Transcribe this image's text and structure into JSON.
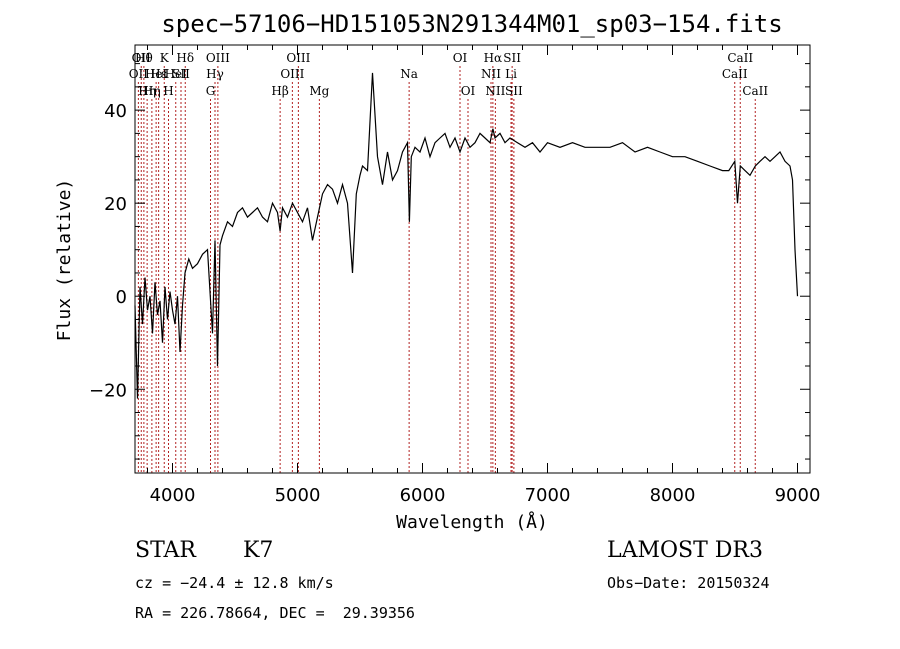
{
  "chart_data": {
    "type": "line",
    "title": "spec−57106−HD151053N291344M01_sp03−154.fits",
    "xlabel": "Wavelength (Å)",
    "ylabel": "Flux (relative)",
    "xlim": [
      3700,
      9100
    ],
    "ylim": [
      -38,
      54
    ],
    "xticks": [
      {
        "value": 4000,
        "label": "4000"
      },
      {
        "value": 5000,
        "label": "5000"
      },
      {
        "value": 6000,
        "label": "6000"
      },
      {
        "value": 7000,
        "label": "7000"
      },
      {
        "value": 8000,
        "label": "8000"
      },
      {
        "value": 9000,
        "label": "9000"
      }
    ],
    "yticks": [
      {
        "value": -20,
        "label": "−20"
      },
      {
        "value": 0,
        "label": "0"
      },
      {
        "value": 20,
        "label": "20"
      },
      {
        "value": 40,
        "label": "40"
      }
    ],
    "series": [
      {
        "name": "spectrum",
        "x": [
          3700,
          3720,
          3740,
          3760,
          3780,
          3800,
          3820,
          3840,
          3860,
          3880,
          3900,
          3920,
          3940,
          3960,
          3980,
          4000,
          4020,
          4040,
          4060,
          4080,
          4100,
          4130,
          4160,
          4200,
          4240,
          4280,
          4320,
          4340,
          4360,
          4380,
          4400,
          4440,
          4480,
          4520,
          4560,
          4600,
          4640,
          4680,
          4720,
          4760,
          4800,
          4840,
          4861,
          4880,
          4920,
          4960,
          5000,
          5040,
          5080,
          5120,
          5160,
          5200,
          5240,
          5280,
          5320,
          5360,
          5400,
          5440,
          5470,
          5500,
          5520,
          5560,
          5600,
          5640,
          5680,
          5720,
          5760,
          5800,
          5840,
          5880,
          5895,
          5910,
          5940,
          5980,
          6020,
          6060,
          6100,
          6140,
          6180,
          6220,
          6260,
          6300,
          6340,
          6380,
          6420,
          6460,
          6500,
          6540,
          6563,
          6580,
          6620,
          6660,
          6700,
          6760,
          6820,
          6880,
          6940,
          7000,
          7100,
          7200,
          7300,
          7400,
          7500,
          7600,
          7700,
          7800,
          7900,
          8000,
          8100,
          8200,
          8300,
          8400,
          8450,
          8498,
          8520,
          8542,
          8580,
          8620,
          8662,
          8700,
          8740,
          8780,
          8820,
          8860,
          8900,
          8940,
          8960,
          8980,
          9000
        ],
        "y": [
          -2,
          -22,
          2,
          -6,
          4,
          -3,
          0,
          -8,
          3,
          -4,
          -1,
          -10,
          2,
          -5,
          1,
          -3,
          -6,
          0,
          -12,
          -2,
          5,
          8,
          6,
          7,
          9,
          10,
          -8,
          12,
          -15,
          11,
          13,
          16,
          15,
          18,
          19,
          17,
          18,
          19,
          17,
          16,
          20,
          18,
          14,
          19,
          17,
          20,
          18,
          16,
          19,
          12,
          17,
          22,
          24,
          23,
          20,
          24,
          20,
          5,
          22,
          26,
          28,
          27,
          48,
          30,
          24,
          31,
          25,
          27,
          31,
          33,
          16,
          30,
          32,
          31,
          34,
          30,
          33,
          34,
          35,
          32,
          34,
          31,
          34,
          32,
          33,
          35,
          34,
          33,
          36,
          34,
          35,
          33,
          34,
          33,
          32,
          33,
          31,
          33,
          32,
          33,
          32,
          32,
          32,
          33,
          31,
          32,
          31,
          30,
          30,
          29,
          28,
          27,
          27,
          29,
          20,
          28,
          27,
          26,
          28,
          29,
          30,
          29,
          30,
          31,
          29,
          28,
          25,
          10,
          0
        ]
      }
    ],
    "lines": [
      {
        "value": 3727,
        "label": "OII",
        "row": 2
      },
      {
        "value": 3750,
        "label": "OII",
        "row": 1
      },
      {
        "value": 3771,
        "label": "Hθ",
        "row": 1
      },
      {
        "value": 3797,
        "label": "Hη",
        "row": 3
      },
      {
        "value": 3835,
        "label": "Hη",
        "row": 3
      },
      {
        "value": 3869,
        "label": "HeI",
        "row": 2
      },
      {
        "value": 3889,
        "label": "Hε",
        "row": 2
      },
      {
        "value": 3934,
        "label": "K",
        "row": 1
      },
      {
        "value": 3968,
        "label": "H",
        "row": 3
      },
      {
        "value": 4026,
        "label": "HeI",
        "row": 2
      },
      {
        "value": 4068,
        "label": "SII",
        "row": 2
      },
      {
        "value": 4102,
        "label": "Hδ",
        "row": 1
      },
      {
        "value": 4304,
        "label": "G",
        "row": 3
      },
      {
        "value": 4340,
        "label": "Hγ",
        "row": 2
      },
      {
        "value": 4363,
        "label": "OIII",
        "row": 1
      },
      {
        "value": 4861,
        "label": "Hβ",
        "row": 3
      },
      {
        "value": 4959,
        "label": "OIII",
        "row": 2
      },
      {
        "value": 5007,
        "label": "OIII",
        "row": 1
      },
      {
        "value": 5175,
        "label": "Mg",
        "row": 3
      },
      {
        "value": 5893,
        "label": "Na",
        "row": 2
      },
      {
        "value": 6300,
        "label": "OI",
        "row": 1
      },
      {
        "value": 6364,
        "label": "OI",
        "row": 3
      },
      {
        "value": 6548,
        "label": "NII",
        "row": 2
      },
      {
        "value": 6563,
        "label": "Hα",
        "row": 1
      },
      {
        "value": 6583,
        "label": "NII",
        "row": 3
      },
      {
        "value": 6708,
        "label": "Li",
        "row": 2
      },
      {
        "value": 6717,
        "label": "SII",
        "row": 1
      },
      {
        "value": 6731,
        "label": "SII",
        "row": 3
      },
      {
        "value": 8498,
        "label": "CaII",
        "row": 2
      },
      {
        "value": 8542,
        "label": "CaII",
        "row": 1
      },
      {
        "value": 8662,
        "label": "CaII",
        "row": 3
      }
    ]
  },
  "info": {
    "class": "STAR",
    "subclass": "K7",
    "survey": "LAMOST DR3",
    "cz": "cz = −24.4 ± 12.8 km/s",
    "obs_date": "Obs−Date: 20150324",
    "coords": "RA = 226.78664, DEC =  29.39356"
  }
}
